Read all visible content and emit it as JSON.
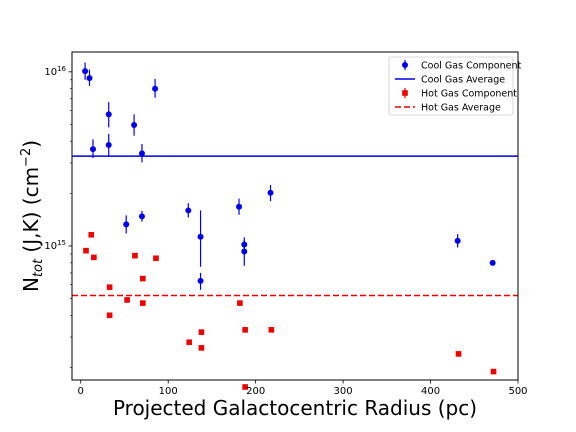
{
  "chart_data": {
    "type": "scatter",
    "xlabel": "Projected Galactocentric Radius (pc)",
    "ylabel_main": "N",
    "ylabel_sub": "tot",
    "ylabel_rest": " (J,K) (cm",
    "ylabel_exp": "−2",
    "ylabel_close": ")",
    "x_scale": "linear",
    "y_scale": "log",
    "xlim": [
      -10,
      500
    ],
    "ylim": [
      170000000000000,
      13000000000000000
    ],
    "x_ticks": [
      0,
      100,
      200,
      300,
      400,
      500
    ],
    "x_tick_labels": [
      "0",
      "100",
      "200",
      "300",
      "400",
      "500"
    ],
    "y_ticks": [
      1000000000000000,
      10000000000000000
    ],
    "y_tick_labels": [
      {
        "base": "10",
        "exp": "15"
      },
      {
        "base": "10",
        "exp": "16"
      }
    ],
    "legend_position": "upper right",
    "series": [
      {
        "name": "Cool Gas Component",
        "kind": "errorbar",
        "color": "#0000ee",
        "marker": "circle",
        "points": [
          {
            "x": 5,
            "y": 10100000000000000,
            "lo": 9000000000000000,
            "hi": 11300000000000000
          },
          {
            "x": 10,
            "y": 9200000000000000,
            "lo": 8300000000000000,
            "hi": 10300000000000000
          },
          {
            "x": 14,
            "y": 3600000000000000,
            "lo": 3200000000000000,
            "hi": 4100000000000000
          },
          {
            "x": 32,
            "y": 5700000000000000,
            "lo": 4800000000000000,
            "hi": 6700000000000000
          },
          {
            "x": 32,
            "y": 3800000000000000,
            "lo": 3300000000000000,
            "hi": 4400000000000000
          },
          {
            "x": 52,
            "y": 1330000000000000,
            "lo": 1180000000000000,
            "hi": 1500000000000000
          },
          {
            "x": 61,
            "y": 4950000000000000,
            "lo": 4300000000000000,
            "hi": 5700000000000000
          },
          {
            "x": 70,
            "y": 3400000000000000,
            "lo": 3020000000000000,
            "hi": 3850000000000000
          },
          {
            "x": 70,
            "y": 1480000000000000,
            "lo": 1380000000000000,
            "hi": 1590000000000000
          },
          {
            "x": 85,
            "y": 8000000000000000,
            "lo": 7100000000000000,
            "hi": 9100000000000000
          },
          {
            "x": 123,
            "y": 1600000000000000,
            "lo": 1460000000000000,
            "hi": 1760000000000000
          },
          {
            "x": 137,
            "y": 1130000000000000,
            "lo": 760000000000000,
            "hi": 1600000000000000
          },
          {
            "x": 137,
            "y": 630000000000000,
            "lo": 560000000000000,
            "hi": 700000000000000
          },
          {
            "x": 181,
            "y": 1680000000000000,
            "lo": 1510000000000000,
            "hi": 1870000000000000
          },
          {
            "x": 187,
            "y": 1020000000000000,
            "lo": 925000000000000,
            "hi": 1120000000000000
          },
          {
            "x": 187,
            "y": 930000000000000,
            "lo": 770000000000000,
            "hi": 1080000000000000
          },
          {
            "x": 217,
            "y": 2020000000000000,
            "lo": 1810000000000000,
            "hi": 2240000000000000
          },
          {
            "x": 431,
            "y": 1070000000000000,
            "lo": 980000000000000,
            "hi": 1170000000000000
          },
          {
            "x": 471,
            "y": 800000000000000,
            "lo": 780000000000000,
            "hi": 820000000000000
          }
        ]
      },
      {
        "name": "Cool Gas Average",
        "kind": "hline",
        "color": "#0000ee",
        "dash": "solid",
        "y": 3280000000000000
      },
      {
        "name": "Hot Gas Component",
        "kind": "errorbar",
        "color": "#ee0000",
        "marker": "square",
        "points": [
          {
            "x": 6,
            "y": 940000000000000
          },
          {
            "x": 12,
            "y": 1160000000000000
          },
          {
            "x": 15,
            "y": 860000000000000
          },
          {
            "x": 33,
            "y": 580000000000000
          },
          {
            "x": 33,
            "y": 400000000000000
          },
          {
            "x": 53,
            "y": 490000000000000
          },
          {
            "x": 62,
            "y": 880000000000000
          },
          {
            "x": 71,
            "y": 650000000000000
          },
          {
            "x": 71,
            "y": 470000000000000
          },
          {
            "x": 86,
            "y": 850000000000000
          },
          {
            "x": 124,
            "y": 280000000000000
          },
          {
            "x": 138,
            "y": 320000000000000
          },
          {
            "x": 138,
            "y": 260000000000000
          },
          {
            "x": 182,
            "y": 470000000000000
          },
          {
            "x": 188,
            "y": 330000000000000
          },
          {
            "x": 188,
            "y": 155000000000000
          },
          {
            "x": 218,
            "y": 330000000000000
          },
          {
            "x": 432,
            "y": 240000000000000
          },
          {
            "x": 472,
            "y": 190000000000000
          }
        ]
      },
      {
        "name": "Hot Gas Average",
        "kind": "hline",
        "color": "#ee0000",
        "dash": "dashed",
        "y": 520000000000000
      }
    ]
  }
}
